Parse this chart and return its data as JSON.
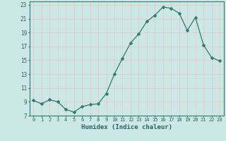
{
  "x": [
    0,
    1,
    2,
    3,
    4,
    5,
    6,
    7,
    8,
    9,
    10,
    11,
    12,
    13,
    14,
    15,
    16,
    17,
    18,
    19,
    20,
    21,
    22,
    23
  ],
  "y": [
    9.2,
    8.7,
    9.3,
    9.0,
    7.9,
    7.5,
    8.3,
    8.6,
    8.7,
    10.2,
    13.0,
    15.3,
    17.5,
    18.8,
    20.6,
    21.5,
    22.7,
    22.5,
    21.8,
    19.3,
    21.2,
    17.2,
    15.4,
    14.9
  ],
  "line_color": "#2d7a6e",
  "marker": "D",
  "marker_size": 2.5,
  "bg_color": "#cce8e6",
  "grid_color": "#e8c8c8",
  "xlabel": "Humidex (Indice chaleur)",
  "xlim": [
    -0.5,
    23.5
  ],
  "ylim": [
    7,
    23.5
  ],
  "yticks": [
    7,
    9,
    11,
    13,
    15,
    17,
    19,
    21,
    23
  ],
  "xticks": [
    0,
    1,
    2,
    3,
    4,
    5,
    6,
    7,
    8,
    9,
    10,
    11,
    12,
    13,
    14,
    15,
    16,
    17,
    18,
    19,
    20,
    21,
    22,
    23
  ],
  "font_color": "#2d6060",
  "tick_fontsize": 5.5,
  "label_fontsize": 6.5
}
